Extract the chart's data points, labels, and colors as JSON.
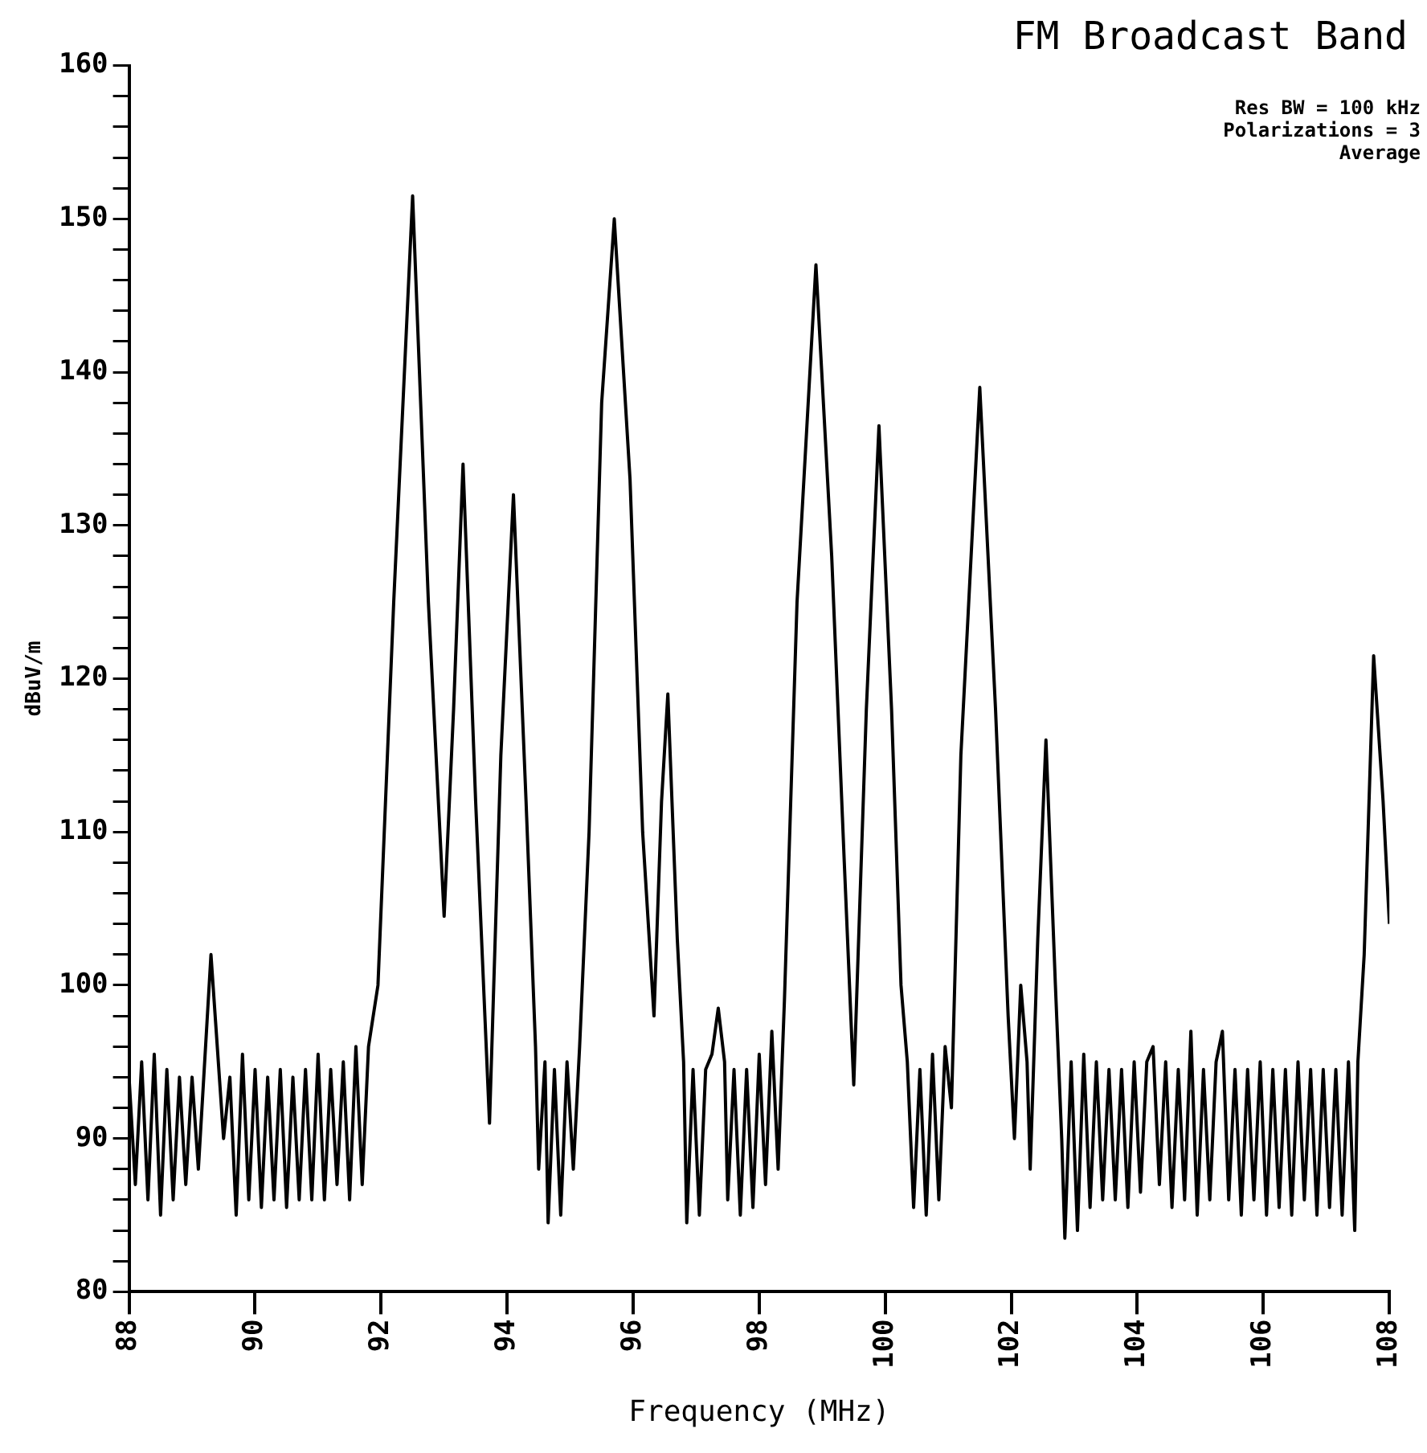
{
  "chart_data": {
    "type": "line",
    "title": "FM Broadcast Band",
    "xlabel": "Frequency (MHz)",
    "ylabel": "dBuV/m",
    "annotations": [
      "Res BW = 100 kHz",
      "Polarizations = 3",
      "Average"
    ],
    "xlim": [
      88,
      108
    ],
    "xticks": [
      88,
      90,
      92,
      94,
      96,
      98,
      100,
      102,
      104,
      106,
      108
    ],
    "ylim": [
      80,
      160
    ],
    "yticks": [
      80,
      {
        "value": 82,
        "label": null
      },
      {
        "value": 84,
        "label": null
      },
      {
        "value": 86,
        "label": null
      },
      {
        "value": 88,
        "label": null
      },
      90,
      {
        "value": 92,
        "label": null
      },
      {
        "value": 94,
        "label": null
      },
      {
        "value": 96,
        "label": null
      },
      {
        "value": 98,
        "label": null
      },
      100,
      {
        "value": 102,
        "label": null
      },
      {
        "value": 104,
        "label": null
      },
      {
        "value": 106,
        "label": null
      },
      {
        "value": 108,
        "label": null
      },
      110,
      {
        "value": 112,
        "label": null
      },
      {
        "value": 114,
        "label": null
      },
      {
        "value": 116,
        "label": null
      },
      {
        "value": 118,
        "label": null
      },
      120,
      {
        "value": 122,
        "label": null
      },
      {
        "value": 124,
        "label": null
      },
      {
        "value": 126,
        "label": null
      },
      {
        "value": 128,
        "label": null
      },
      130,
      {
        "value": 132,
        "label": null
      },
      {
        "value": 134,
        "label": null
      },
      {
        "value": 136,
        "label": null
      },
      {
        "value": 138,
        "label": null
      },
      140,
      {
        "value": 142,
        "label": null
      },
      {
        "value": 144,
        "label": null
      },
      {
        "value": 146,
        "label": null
      },
      {
        "value": 148,
        "label": null
      },
      150,
      {
        "value": 152,
        "label": null
      },
      {
        "value": 154,
        "label": null
      },
      {
        "value": 156,
        "label": null
      },
      {
        "value": 158,
        "label": null
      },
      160
    ],
    "grid": false,
    "legend": false,
    "marker": "none",
    "line_style": "solid",
    "series": [
      {
        "color": "#000000",
        "x": [
          88.0,
          88.1,
          88.2,
          88.3,
          88.4,
          88.5,
          88.6,
          88.7,
          88.8,
          88.9,
          89.0,
          89.1,
          89.3,
          89.5,
          89.6,
          89.7,
          89.8,
          89.9,
          90.0,
          90.1,
          90.2,
          90.3,
          90.4,
          90.5,
          90.6,
          90.7,
          90.8,
          90.9,
          91.0,
          91.1,
          91.2,
          91.3,
          91.4,
          91.5,
          91.6,
          91.7,
          91.8,
          91.95,
          92.2,
          92.5,
          92.75,
          93.0,
          93.15,
          93.3,
          93.5,
          93.72,
          93.9,
          94.1,
          94.3,
          94.45,
          94.5,
          94.6,
          94.65,
          94.75,
          94.85,
          94.95,
          95.05,
          95.15,
          95.3,
          95.5,
          95.7,
          95.95,
          96.15,
          96.33,
          96.45,
          96.55,
          96.7,
          96.8,
          96.85,
          96.95,
          97.05,
          97.15,
          97.25,
          97.35,
          97.45,
          97.5,
          97.6,
          97.7,
          97.8,
          97.9,
          98.0,
          98.1,
          98.2,
          98.3,
          98.4,
          98.6,
          98.9,
          99.15,
          99.35,
          99.5,
          99.7,
          99.9,
          100.1,
          100.25,
          100.35,
          100.45,
          100.55,
          100.65,
          100.75,
          100.85,
          100.95,
          101.05,
          101.2,
          101.5,
          101.75,
          101.95,
          102.05,
          102.15,
          102.25,
          102.3,
          102.42,
          102.55,
          102.7,
          102.8,
          102.85,
          102.95,
          103.05,
          103.15,
          103.25,
          103.35,
          103.45,
          103.55,
          103.65,
          103.75,
          103.85,
          103.95,
          104.05,
          104.15,
          104.25,
          104.35,
          104.45,
          104.55,
          104.65,
          104.75,
          104.85,
          104.95,
          105.05,
          105.15,
          105.25,
          105.35,
          105.45,
          105.55,
          105.65,
          105.75,
          105.85,
          105.95,
          106.05,
          106.15,
          106.25,
          106.35,
          106.45,
          106.55,
          106.65,
          106.75,
          106.85,
          106.95,
          107.05,
          107.15,
          107.25,
          107.35,
          107.45,
          107.5,
          107.6,
          107.75,
          107.9,
          108.0
        ],
        "values": [
          94,
          87,
          95,
          86,
          95.5,
          85,
          94.5,
          86,
          94,
          87,
          94,
          88,
          102,
          90,
          94,
          85,
          95.5,
          86,
          94.5,
          85.5,
          94,
          86,
          94.5,
          85.5,
          94,
          86,
          94.5,
          86,
          95.5,
          86,
          94.5,
          87,
          95,
          86,
          96,
          87,
          96,
          100,
          125,
          151.5,
          125,
          104.5,
          118,
          134,
          112,
          91,
          115,
          132,
          112,
          96,
          88,
          95,
          84.5,
          94.5,
          85,
          95,
          88,
          96,
          110,
          138,
          150,
          133,
          110,
          98,
          112,
          119,
          103,
          95,
          84.5,
          94.5,
          85,
          94.5,
          95.5,
          98.5,
          95,
          86,
          94.5,
          85,
          94.5,
          85.5,
          95.5,
          87,
          97,
          88,
          99,
          125,
          147,
          128,
          108,
          93.5,
          118,
          136.5,
          118,
          100,
          95,
          85.5,
          94.5,
          85,
          95.5,
          86,
          96,
          92,
          115,
          139,
          118,
          98,
          90,
          100,
          95,
          88,
          103,
          116,
          100,
          90,
          83.5,
          95,
          84,
          95.5,
          85.5,
          95,
          86,
          94.5,
          86,
          94.5,
          85.5,
          95,
          86.5,
          95,
          96,
          87,
          95,
          85.5,
          94.5,
          86,
          97,
          85,
          94.5,
          86,
          95,
          97,
          86,
          94.5,
          85,
          94.5,
          86,
          95,
          85,
          94.5,
          85.5,
          94.5,
          85,
          95,
          86,
          94.5,
          85,
          94.5,
          85.5,
          94.5,
          85,
          95,
          84,
          95,
          102,
          121.5,
          112,
          104
        ]
      }
    ]
  }
}
